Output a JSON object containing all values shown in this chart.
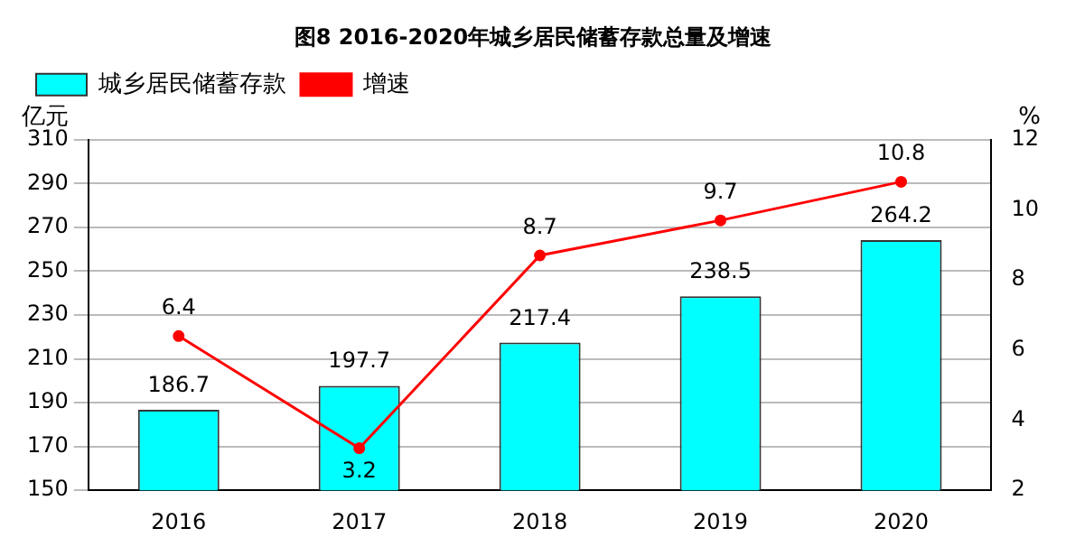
{
  "chart_data": {
    "type": "bar",
    "title": "图8 2016-2020年城乡居民储蓄存款总量及增速",
    "ylabel": "亿元",
    "y2label": "%",
    "categories": [
      "2016",
      "2017",
      "2018",
      "2019",
      "2020"
    ],
    "series": [
      {
        "name": "城乡居民储蓄存款",
        "color": "#00ffff",
        "values": [
          186.7,
          197.7,
          217.4,
          238.5,
          264.2
        ]
      },
      {
        "name": "增速",
        "type": "line",
        "axis": "y2",
        "color": "#ff0000",
        "marker": "circle",
        "values": [
          6.4,
          3.2,
          8.7,
          9.7,
          10.8
        ]
      }
    ],
    "ylim": [
      150,
      310
    ],
    "yticks": [
      150,
      170,
      190,
      210,
      230,
      250,
      270,
      290,
      310
    ],
    "y2lim": [
      2,
      12
    ],
    "y2ticks": [
      2,
      4,
      6,
      8,
      10,
      12
    ],
    "grid": "y",
    "legend": "top left",
    "data_labels": true
  }
}
